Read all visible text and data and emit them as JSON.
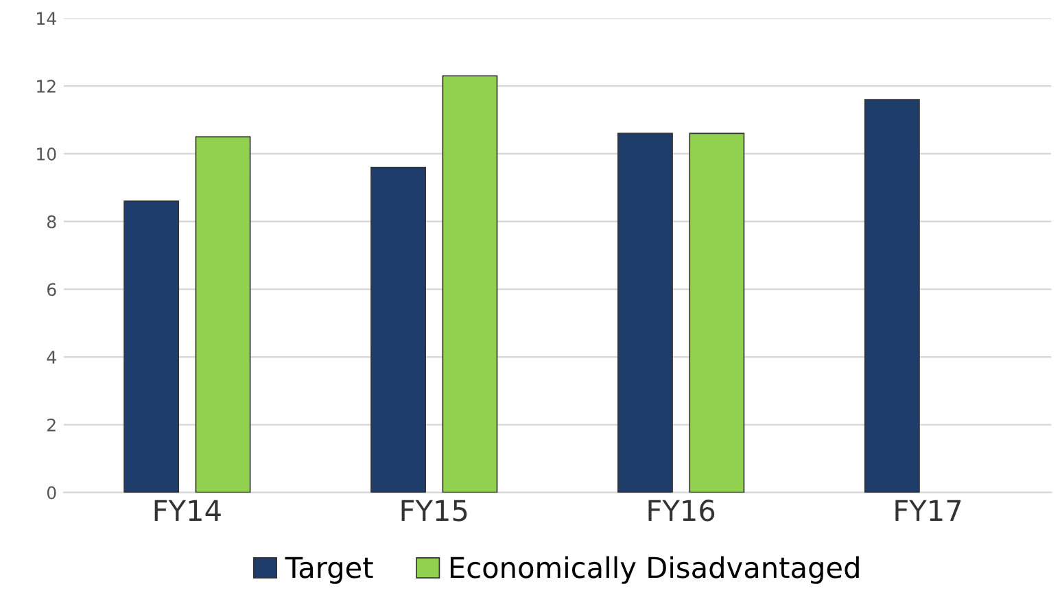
{
  "chart_data": {
    "type": "bar",
    "categories": [
      "FY14",
      "FY15",
      "FY16",
      "FY17"
    ],
    "series": [
      {
        "name": "Target",
        "color": "#1f3d6b",
        "values": [
          8.6,
          9.6,
          10.6,
          11.6
        ]
      },
      {
        "name": "Economically Disadvantaged",
        "color": "#92d050",
        "values": [
          10.5,
          12.3,
          10.6,
          null
        ]
      }
    ],
    "ylim": [
      0,
      14
    ],
    "yticks": [
      0,
      2,
      4,
      6,
      8,
      10,
      12,
      14
    ],
    "grid": "y",
    "legend": "bottom"
  }
}
